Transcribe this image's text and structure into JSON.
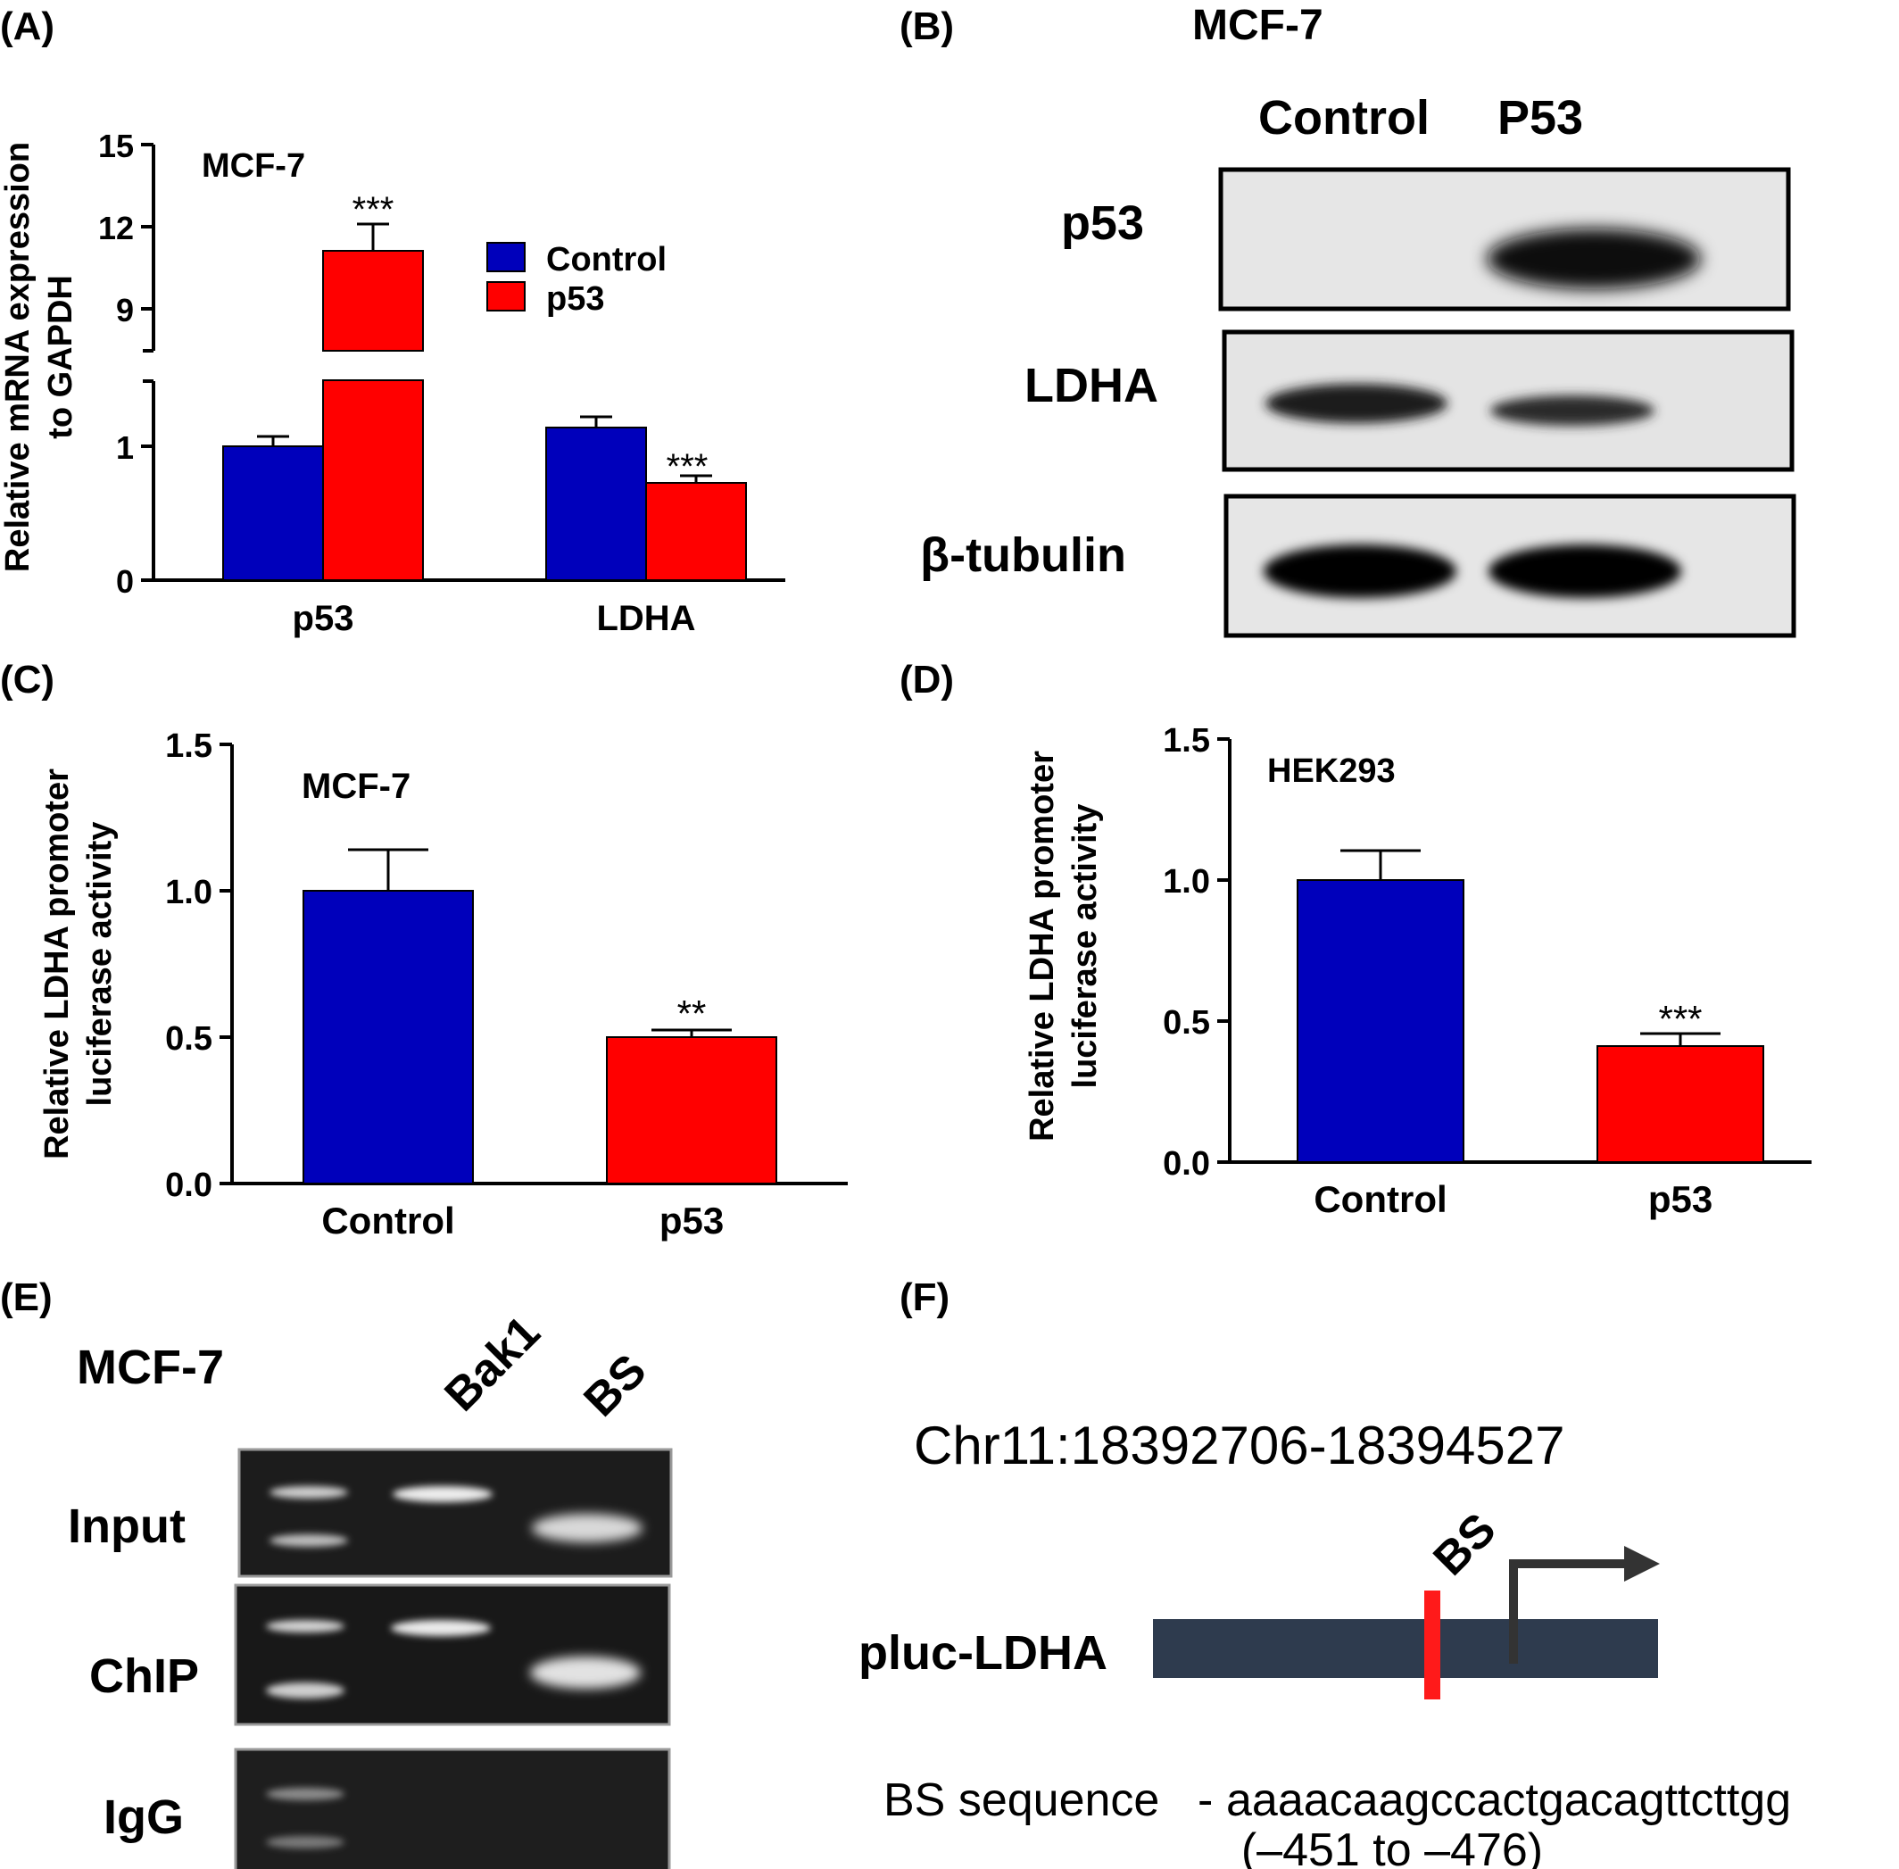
{
  "panels": {
    "A": {
      "label": "(A)",
      "cell_line": "MCF-7",
      "ylabel_line1": "Relative mRNA expression",
      "ylabel_line2": "to GAPDH",
      "legend": [
        {
          "name": "Control",
          "color": "#0000bb"
        },
        {
          "name": "p53",
          "color": "#ff0000"
        }
      ],
      "upper_ticks": [
        "15",
        "12",
        "9"
      ],
      "lower_ticks": [
        "1",
        "0"
      ],
      "categories": [
        "p53",
        "LDHA"
      ],
      "sig": [
        "***",
        "***"
      ]
    },
    "B": {
      "label": "(B)",
      "cell_line": "MCF-7",
      "lanes": [
        "Control",
        "P53"
      ],
      "rows": [
        "p53",
        "LDHA",
        "β-tubulin"
      ]
    },
    "C": {
      "label": "(C)",
      "cell_line": "MCF-7",
      "ylabel_line1": "Relative LDHA promoter",
      "ylabel_line2": "luciferase activity",
      "ticks": [
        "0.0",
        "0.5",
        "1.0",
        "1.5"
      ],
      "categories": [
        "Control",
        "p53"
      ],
      "sig": "**"
    },
    "D": {
      "label": "(D)",
      "cell_line": "HEK293",
      "ylabel_line1": "Relative LDHA promoter",
      "ylabel_line2": "luciferase activity",
      "ticks": [
        "0.0",
        "0.5",
        "1.0",
        "1.5"
      ],
      "categories": [
        "Control",
        "p53"
      ],
      "sig": "***"
    },
    "E": {
      "label": "(E)",
      "cell_line": "MCF-7",
      "lanes": [
        "Bak1",
        "BS"
      ],
      "rows": [
        "Input",
        "ChIP",
        "IgG"
      ]
    },
    "F": {
      "label": "(F)",
      "coordinates": "Chr11:18392706-18394527",
      "construct": "pluc-LDHA",
      "site_label": "BS",
      "sequence_label": "BS sequence",
      "sequence": "aaaacaagccactgacagttcttgg",
      "position": "(–451 to –476)"
    }
  },
  "chart_data": [
    {
      "panel": "A",
      "type": "bar",
      "title": "MCF-7",
      "xlabel": "",
      "ylabel": "Relative mRNA expression to GAPDH",
      "categories": [
        "p53",
        "LDHA"
      ],
      "series": [
        {
          "name": "Control",
          "values": [
            1.0,
            1.14
          ],
          "errors": [
            0.07,
            0.08
          ]
        },
        {
          "name": "p53",
          "values": [
            11.1,
            0.73
          ],
          "errors": [
            1.0,
            0.05
          ]
        }
      ],
      "broken_axis": {
        "lower": [
          0,
          1.5
        ],
        "upper": [
          7.5,
          15
        ]
      },
      "color_control": "#0000bb",
      "color_p53": "#ff0000",
      "legend": "top-right"
    },
    {
      "panel": "C",
      "type": "bar",
      "title": "MCF-7",
      "xlabel": "",
      "ylabel": "Relative LDHA promoter luciferase activity",
      "categories": [
        "Control",
        "p53"
      ],
      "values": [
        1.0,
        0.5
      ],
      "errors": [
        0.13,
        0.03
      ],
      "ylim": [
        0,
        1.5
      ]
    },
    {
      "panel": "D",
      "type": "bar",
      "title": "HEK293",
      "xlabel": "",
      "ylabel": "Relative LDHA promoter luciferase activity",
      "categories": [
        "Control",
        "p53"
      ],
      "values": [
        1.0,
        0.41
      ],
      "errors": [
        0.1,
        0.05
      ],
      "ylim": [
        0,
        1.5
      ]
    }
  ]
}
